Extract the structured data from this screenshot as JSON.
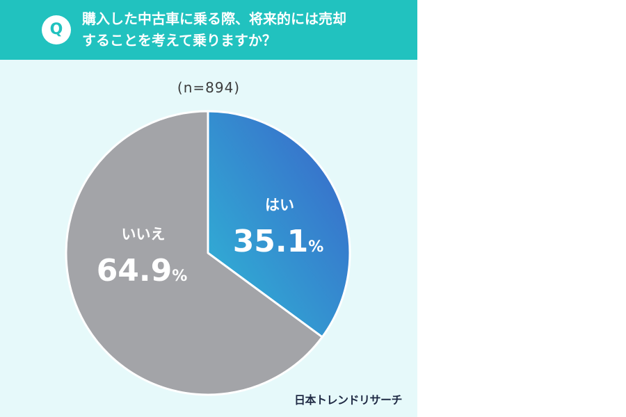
{
  "header": {
    "badge": "Q",
    "question_line1": "購入した中古車に乗る際、将来的には売却",
    "question_line2": "することを考えて乗りますか？"
  },
  "sample_size": "(n=894)",
  "brand": "日本トレンドリサーチ",
  "colors": {
    "header": "#21c2bf",
    "background": "#e6f9fa",
    "yes_gradient_start": "#2fb8d6",
    "yes_gradient_end": "#3a63c9",
    "no": "#a3a4a8"
  },
  "chart_data": {
    "type": "pie",
    "title": "購入した中古車に乗る際、将来的には売却することを考えて乗りますか？",
    "n": 894,
    "slices": [
      {
        "label": "はい",
        "value": 35.1,
        "display": "35.1",
        "unit": "%"
      },
      {
        "label": "いいえ",
        "value": 64.9,
        "display": "64.9",
        "unit": "%"
      }
    ],
    "start_angle": "12 o'clock",
    "direction": "clockwise"
  }
}
